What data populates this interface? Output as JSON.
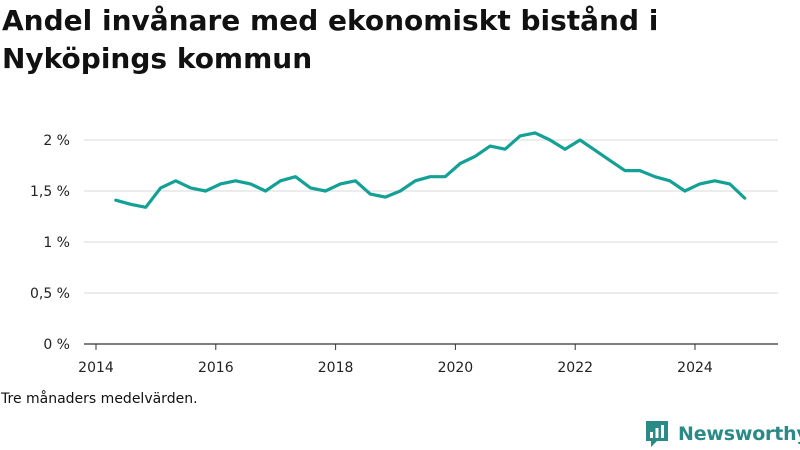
{
  "chart_data": {
    "type": "line",
    "title": "Andel invånare med ekonomiskt bistånd i Nyköpings kommun",
    "xlabel": "",
    "ylabel": "",
    "ylim": [
      0,
      2.2
    ],
    "xlim": [
      2014,
      2025.3
    ],
    "grid": true,
    "line_color": "#13a196",
    "y_ticks": [
      {
        "value": 0,
        "label": "0 %"
      },
      {
        "value": 0.5,
        "label": "0,5 %"
      },
      {
        "value": 1,
        "label": "1 %"
      },
      {
        "value": 1.5,
        "label": "1,5 %"
      },
      {
        "value": 2,
        "label": "2 %"
      }
    ],
    "x_ticks": [
      {
        "value": 2014,
        "label": "2014"
      },
      {
        "value": 2016,
        "label": "2016"
      },
      {
        "value": 2018,
        "label": "2018"
      },
      {
        "value": 2020,
        "label": "2020"
      },
      {
        "value": 2022,
        "label": "2022"
      },
      {
        "value": 2024,
        "label": "2024"
      }
    ],
    "series": [
      {
        "x": [
          2014.33,
          2014.58,
          2014.83,
          2015.08,
          2015.33,
          2015.58,
          2015.83,
          2016.08,
          2016.33,
          2016.58,
          2016.83,
          2017.08,
          2017.33,
          2017.58,
          2017.83,
          2018.08,
          2018.33,
          2018.58,
          2018.83,
          2019.08,
          2019.33,
          2019.58,
          2019.83,
          2020.08,
          2020.33,
          2020.58,
          2020.83,
          2021.08,
          2021.33,
          2021.58,
          2021.83,
          2022.08,
          2022.33,
          2022.58,
          2022.83,
          2023.08,
          2023.33,
          2023.58,
          2023.83,
          2024.08,
          2024.33,
          2024.58,
          2024.83
        ],
        "values": [
          1.41,
          1.37,
          1.34,
          1.53,
          1.6,
          1.53,
          1.5,
          1.57,
          1.6,
          1.57,
          1.5,
          1.6,
          1.64,
          1.53,
          1.5,
          1.57,
          1.6,
          1.47,
          1.44,
          1.5,
          1.6,
          1.64,
          1.64,
          1.77,
          1.84,
          1.94,
          1.91,
          2.04,
          2.07,
          2.0,
          1.91,
          2.0,
          1.9,
          1.8,
          1.7,
          1.7,
          1.64,
          1.6,
          1.5,
          1.57,
          1.6,
          1.57,
          1.43
        ]
      }
    ]
  },
  "note": "Tre månaders medelvärden.",
  "brand": {
    "name": "Newsworthy",
    "logo_icon": "newsworthy-logo-icon",
    "color": "#2a8a86"
  }
}
